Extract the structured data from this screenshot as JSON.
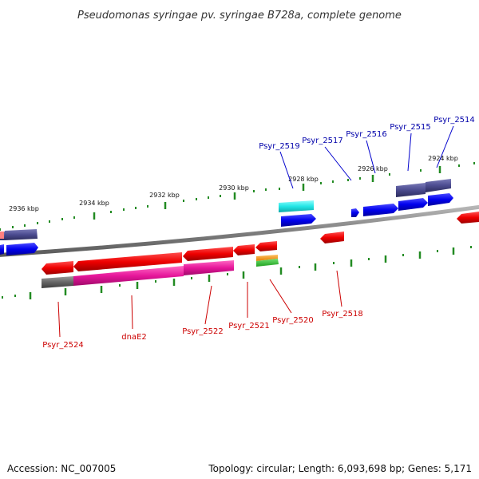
{
  "title": "Pseudomonas syringae pv. syringae B728a, complete genome",
  "footer": {
    "accession": "Accession: NC_007005",
    "summary": "Topology: circular; Length: 6,093,698 bp; Genes: 5,171"
  },
  "ticks": [
    "2936 kbp",
    "2934 kbp",
    "2932 kbp",
    "2930 kbp",
    "2928 kbp",
    "2926 kbp",
    "2924 kbp"
  ],
  "genes_top": [
    "Psyr_2519",
    "Psyr_2517",
    "Psyr_2516",
    "Psyr_2515",
    "Psyr_2514"
  ],
  "genes_bottom": [
    "Psyr_2524",
    "dnaE2",
    "Psyr_2522",
    "Psyr_2521",
    "Psyr_2520",
    "Psyr_2518"
  ],
  "colors": {
    "forward_gene": "#0000ee",
    "reverse_gene": "#ee0000",
    "top_label": "#0000aa",
    "bottom_label": "#cc0000",
    "backbone": "#808080",
    "ticks": "#228B22",
    "cog_purple": "#4b4b8f",
    "cog_cyan": "#22e6e6",
    "cog_magenta": "#e6169a",
    "cog_gray": "#666666"
  }
}
